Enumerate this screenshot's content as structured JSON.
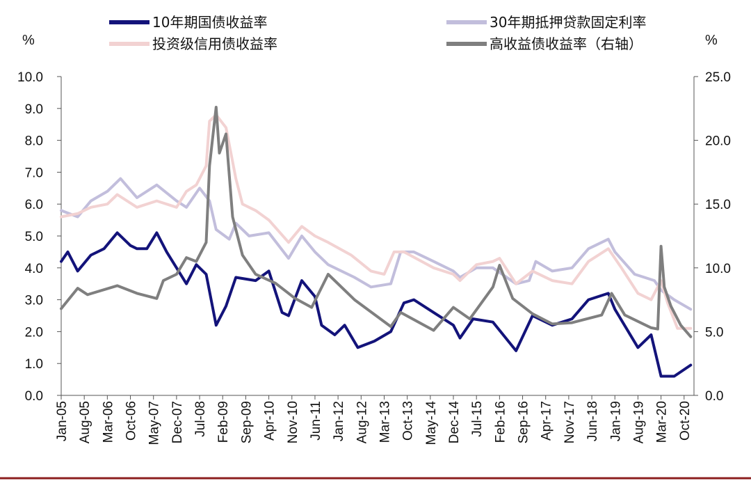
{
  "chart_data": {
    "type": "line",
    "y_left_unit": "%",
    "y_right_unit": "%",
    "y_left_lim": [
      0,
      10
    ],
    "y_right_lim": [
      0,
      25
    ],
    "y_left_ticks": [
      "0.0",
      "1.0",
      "2.0",
      "3.0",
      "4.0",
      "5.0",
      "6.0",
      "7.0",
      "8.0",
      "9.0",
      "10.0"
    ],
    "y_right_ticks": [
      "0.0",
      "5.0",
      "10.0",
      "15.0",
      "20.0",
      "25.0"
    ],
    "x_range": [
      "2005-01",
      "2021-01"
    ],
    "x_ticks": [
      {
        "date": "2005-01",
        "label": "Jan-05"
      },
      {
        "date": "2005-08",
        "label": "Aug-05"
      },
      {
        "date": "2006-03",
        "label": "Mar-06"
      },
      {
        "date": "2006-10",
        "label": "Oct-06"
      },
      {
        "date": "2007-05",
        "label": "May-07"
      },
      {
        "date": "2007-12",
        "label": "Dec-07"
      },
      {
        "date": "2008-07",
        "label": "Jul-08"
      },
      {
        "date": "2009-02",
        "label": "Feb-09"
      },
      {
        "date": "2009-09",
        "label": "Sep-09"
      },
      {
        "date": "2010-04",
        "label": "Apr-10"
      },
      {
        "date": "2010-11",
        "label": "Nov-10"
      },
      {
        "date": "2011-06",
        "label": "Jun-11"
      },
      {
        "date": "2012-01",
        "label": "Jan-12"
      },
      {
        "date": "2012-08",
        "label": "Aug-12"
      },
      {
        "date": "2013-03",
        "label": "Mar-13"
      },
      {
        "date": "2013-10",
        "label": "Oct-13"
      },
      {
        "date": "2014-05",
        "label": "May-14"
      },
      {
        "date": "2014-12",
        "label": "Dec-14"
      },
      {
        "date": "2015-07",
        "label": "Jul-15"
      },
      {
        "date": "2016-02",
        "label": "Feb-16"
      },
      {
        "date": "2016-09",
        "label": "Sep-16"
      },
      {
        "date": "2017-04",
        "label": "Apr-17"
      },
      {
        "date": "2017-11",
        "label": "Nov-17"
      },
      {
        "date": "2018-06",
        "label": "Jun-18"
      },
      {
        "date": "2019-01",
        "label": "Jan-19"
      },
      {
        "date": "2019-08",
        "label": "Aug-19"
      },
      {
        "date": "2020-03",
        "label": "Mar-20"
      },
      {
        "date": "2020-10",
        "label": "Oct-20"
      }
    ],
    "series": [
      {
        "name": "30年期抵押贷款固定利率",
        "axis": "left",
        "color": "#c2bedc",
        "points": [
          [
            "2005-01",
            5.8
          ],
          [
            "2005-06",
            5.6
          ],
          [
            "2005-10",
            6.1
          ],
          [
            "2006-03",
            6.4
          ],
          [
            "2006-07",
            6.8
          ],
          [
            "2006-12",
            6.2
          ],
          [
            "2007-06",
            6.6
          ],
          [
            "2007-12",
            6.1
          ],
          [
            "2008-03",
            5.9
          ],
          [
            "2008-07",
            6.5
          ],
          [
            "2008-10",
            6.1
          ],
          [
            "2008-12",
            5.2
          ],
          [
            "2009-04",
            4.9
          ],
          [
            "2009-06",
            5.4
          ],
          [
            "2009-10",
            5.0
          ],
          [
            "2010-04",
            5.1
          ],
          [
            "2010-10",
            4.3
          ],
          [
            "2011-02",
            5.0
          ],
          [
            "2011-06",
            4.5
          ],
          [
            "2011-10",
            4.1
          ],
          [
            "2012-06",
            3.7
          ],
          [
            "2012-11",
            3.4
          ],
          [
            "2013-05",
            3.5
          ],
          [
            "2013-08",
            4.5
          ],
          [
            "2013-12",
            4.5
          ],
          [
            "2014-06",
            4.2
          ],
          [
            "2014-12",
            3.9
          ],
          [
            "2015-02",
            3.7
          ],
          [
            "2015-07",
            4.0
          ],
          [
            "2015-12",
            4.0
          ],
          [
            "2016-07",
            3.5
          ],
          [
            "2016-11",
            3.6
          ],
          [
            "2017-01",
            4.2
          ],
          [
            "2017-06",
            3.9
          ],
          [
            "2017-12",
            4.0
          ],
          [
            "2018-05",
            4.6
          ],
          [
            "2018-11",
            4.9
          ],
          [
            "2019-01",
            4.5
          ],
          [
            "2019-07",
            3.8
          ],
          [
            "2019-10",
            3.7
          ],
          [
            "2020-01",
            3.6
          ],
          [
            "2020-03",
            3.3
          ],
          [
            "2020-07",
            3.0
          ],
          [
            "2020-12",
            2.7
          ]
        ]
      },
      {
        "name": "投资级信用债收益率",
        "axis": "left",
        "color": "#f2d2d2",
        "points": [
          [
            "2005-01",
            5.6
          ],
          [
            "2005-06",
            5.7
          ],
          [
            "2005-10",
            5.9
          ],
          [
            "2006-03",
            6.0
          ],
          [
            "2006-06",
            6.3
          ],
          [
            "2006-12",
            5.9
          ],
          [
            "2007-06",
            6.1
          ],
          [
            "2007-12",
            5.9
          ],
          [
            "2008-03",
            6.4
          ],
          [
            "2008-06",
            6.6
          ],
          [
            "2008-09",
            7.2
          ],
          [
            "2008-10",
            8.6
          ],
          [
            "2008-12",
            8.8
          ],
          [
            "2009-03",
            8.4
          ],
          [
            "2009-06",
            6.8
          ],
          [
            "2009-08",
            6.0
          ],
          [
            "2009-12",
            5.8
          ],
          [
            "2010-04",
            5.5
          ],
          [
            "2010-10",
            4.8
          ],
          [
            "2011-02",
            5.3
          ],
          [
            "2011-06",
            5.0
          ],
          [
            "2011-10",
            4.8
          ],
          [
            "2012-05",
            4.4
          ],
          [
            "2012-11",
            3.9
          ],
          [
            "2013-03",
            3.8
          ],
          [
            "2013-06",
            4.5
          ],
          [
            "2013-09",
            4.5
          ],
          [
            "2014-06",
            4.0
          ],
          [
            "2014-12",
            3.8
          ],
          [
            "2015-02",
            3.6
          ],
          [
            "2015-07",
            4.1
          ],
          [
            "2015-12",
            4.2
          ],
          [
            "2016-02",
            4.3
          ],
          [
            "2016-07",
            3.5
          ],
          [
            "2016-12",
            3.9
          ],
          [
            "2017-06",
            3.6
          ],
          [
            "2017-12",
            3.5
          ],
          [
            "2018-05",
            4.2
          ],
          [
            "2018-11",
            4.6
          ],
          [
            "2019-03",
            4.0
          ],
          [
            "2019-08",
            3.2
          ],
          [
            "2019-12",
            3.0
          ],
          [
            "2020-03",
            3.6
          ],
          [
            "2020-05",
            2.9
          ],
          [
            "2020-08",
            2.1
          ],
          [
            "2020-12",
            2.1
          ]
        ]
      },
      {
        "name": "10年期国债收益率",
        "axis": "left",
        "color": "#13137a",
        "points": [
          [
            "2005-01",
            4.2
          ],
          [
            "2005-03",
            4.5
          ],
          [
            "2005-06",
            3.9
          ],
          [
            "2005-10",
            4.4
          ],
          [
            "2006-02",
            4.6
          ],
          [
            "2006-06",
            5.1
          ],
          [
            "2006-10",
            4.7
          ],
          [
            "2006-12",
            4.6
          ],
          [
            "2007-03",
            4.6
          ],
          [
            "2007-06",
            5.1
          ],
          [
            "2007-09",
            4.5
          ],
          [
            "2007-12",
            4.0
          ],
          [
            "2008-03",
            3.5
          ],
          [
            "2008-06",
            4.1
          ],
          [
            "2008-09",
            3.8
          ],
          [
            "2008-12",
            2.2
          ],
          [
            "2009-03",
            2.8
          ],
          [
            "2009-06",
            3.7
          ],
          [
            "2009-12",
            3.6
          ],
          [
            "2010-04",
            3.9
          ],
          [
            "2010-08",
            2.6
          ],
          [
            "2010-10",
            2.5
          ],
          [
            "2011-02",
            3.6
          ],
          [
            "2011-06",
            3.1
          ],
          [
            "2011-08",
            2.2
          ],
          [
            "2011-12",
            1.9
          ],
          [
            "2012-03",
            2.2
          ],
          [
            "2012-07",
            1.5
          ],
          [
            "2012-12",
            1.7
          ],
          [
            "2013-05",
            2.0
          ],
          [
            "2013-09",
            2.9
          ],
          [
            "2013-12",
            3.0
          ],
          [
            "2014-06",
            2.6
          ],
          [
            "2014-12",
            2.2
          ],
          [
            "2015-02",
            1.8
          ],
          [
            "2015-06",
            2.4
          ],
          [
            "2015-12",
            2.3
          ],
          [
            "2016-07",
            1.4
          ],
          [
            "2016-12",
            2.5
          ],
          [
            "2017-06",
            2.2
          ],
          [
            "2017-12",
            2.4
          ],
          [
            "2018-05",
            3.0
          ],
          [
            "2018-11",
            3.2
          ],
          [
            "2019-01",
            2.7
          ],
          [
            "2019-08",
            1.5
          ],
          [
            "2019-12",
            1.9
          ],
          [
            "2020-03",
            0.6
          ],
          [
            "2020-07",
            0.6
          ],
          [
            "2020-12",
            0.95
          ]
        ]
      },
      {
        "name": "高收益债收益率（右轴）",
        "axis": "right",
        "color": "#7f7f7f",
        "points": [
          [
            "2005-01",
            6.8
          ],
          [
            "2005-06",
            8.4
          ],
          [
            "2005-09",
            7.9
          ],
          [
            "2006-06",
            8.6
          ],
          [
            "2006-12",
            8.0
          ],
          [
            "2007-06",
            7.6
          ],
          [
            "2007-08",
            9.0
          ],
          [
            "2007-12",
            9.5
          ],
          [
            "2008-03",
            10.8
          ],
          [
            "2008-06",
            10.5
          ],
          [
            "2008-09",
            12.0
          ],
          [
            "2008-10",
            18.0
          ],
          [
            "2008-12",
            22.6
          ],
          [
            "2009-01",
            19.0
          ],
          [
            "2009-03",
            20.5
          ],
          [
            "2009-05",
            14.0
          ],
          [
            "2009-08",
            11.0
          ],
          [
            "2009-12",
            9.5
          ],
          [
            "2010-06",
            8.8
          ],
          [
            "2010-12",
            7.6
          ],
          [
            "2011-05",
            6.9
          ],
          [
            "2011-10",
            9.5
          ],
          [
            "2012-06",
            7.5
          ],
          [
            "2013-05",
            5.4
          ],
          [
            "2013-08",
            6.5
          ],
          [
            "2014-06",
            5.1
          ],
          [
            "2014-12",
            6.9
          ],
          [
            "2015-05",
            6.0
          ],
          [
            "2015-12",
            8.5
          ],
          [
            "2016-02",
            10.2
          ],
          [
            "2016-06",
            7.6
          ],
          [
            "2016-12",
            6.4
          ],
          [
            "2017-06",
            5.6
          ],
          [
            "2017-12",
            5.7
          ],
          [
            "2018-09",
            6.3
          ],
          [
            "2018-12",
            8.0
          ],
          [
            "2019-04",
            6.3
          ],
          [
            "2019-12",
            5.3
          ],
          [
            "2020-02",
            5.2
          ],
          [
            "2020-03",
            11.7
          ],
          [
            "2020-04",
            8.5
          ],
          [
            "2020-06",
            7.0
          ],
          [
            "2020-09",
            5.5
          ],
          [
            "2020-12",
            4.6
          ]
        ]
      }
    ]
  },
  "legend": {
    "item1": "10年期国债收益率",
    "item2": "30年期抵押贷款固定利率",
    "item3": "投资级信用债收益率",
    "item4": "高收益债收益率（右轴）"
  }
}
